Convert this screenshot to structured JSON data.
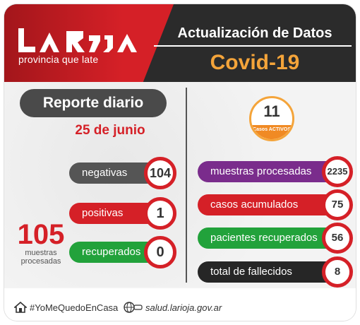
{
  "header": {
    "logo_text": "La Rioja",
    "logo_subtitle": "provincia que late",
    "title": "Actualización de Datos",
    "subtitle": "Covid-19"
  },
  "left": {
    "heading": "Reporte diario",
    "date": "25 de junio",
    "items": [
      {
        "label": "negativas",
        "value": "104",
        "color": "#555555"
      },
      {
        "label": "positivas",
        "value": "1",
        "color": "#d52027"
      },
      {
        "label": "recuperados",
        "value": "0",
        "color": "#22a23b"
      }
    ],
    "total_value": "105",
    "total_label": "muestras procesadas"
  },
  "right": {
    "active_value": "11",
    "active_label": "Casos ACTIVOS",
    "items": [
      {
        "label": "muestras procesadas",
        "value": "2235",
        "color": "#7a2c8c"
      },
      {
        "label": "casos acumulados",
        "value": "75",
        "color": "#d52027"
      },
      {
        "label": "pacientes recuperados",
        "value": "56",
        "color": "#22a23b"
      },
      {
        "label": "total de fallecidos",
        "value": "8",
        "color": "#262626"
      }
    ]
  },
  "footer": {
    "hashtag": "#YoMeQuedoEnCasa",
    "url": "salud.larioja.gov.ar"
  },
  "colors": {
    "red": "#d52027",
    "orange": "#f4a43a",
    "dark": "#2b2b2b"
  }
}
